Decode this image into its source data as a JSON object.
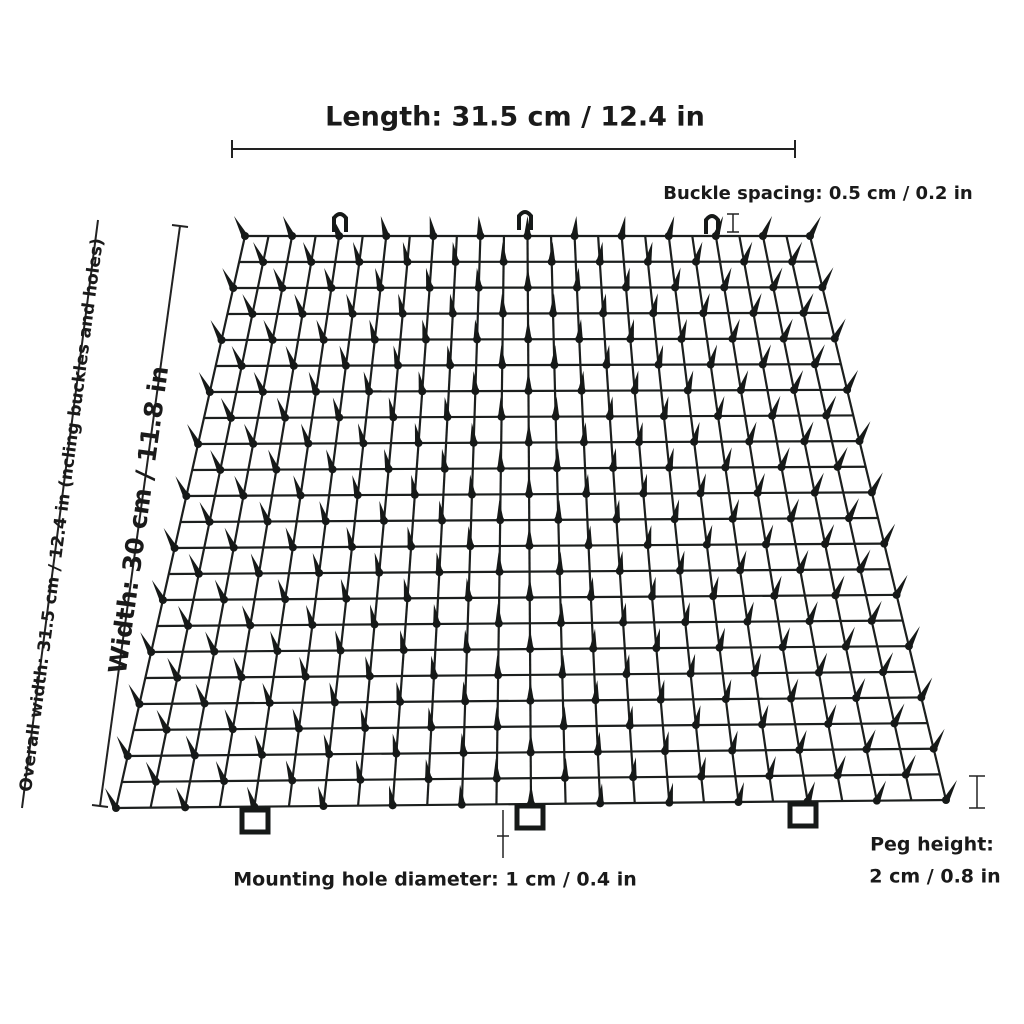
{
  "labels": {
    "length": "Length: 31.5 cm / 12.4 in",
    "buckle_spacing": "Buckle spacing: 0.5 cm / 0.2 in",
    "overall_width": "Overall width: 31.5 cm / 12.4 in (ncling buckles and holes)",
    "width": "Width: 30 cm / 11.8 in",
    "mounting_hole": "Mounting hole diameter: 1 cm / 0.4 in",
    "peg_height": [
      "Peg height:",
      "2 cm / 0.8 in"
    ]
  }
}
